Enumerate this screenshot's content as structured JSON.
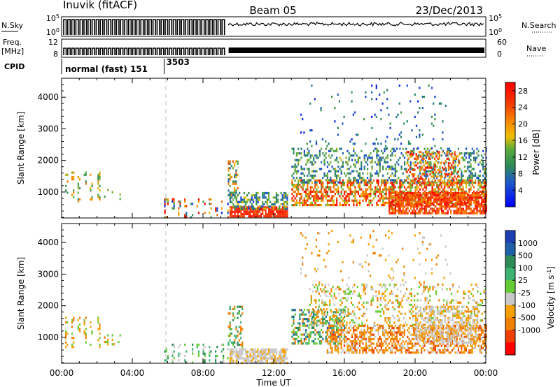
{
  "header": {
    "title": "Inuvik (fitACF)",
    "beam": "Beam 05",
    "date": "23/Dec/2013"
  },
  "top_panels": {
    "left_labels": {
      "nsky": "N.Sky",
      "freq": "Freq.",
      "freq_unit": "[MHz]",
      "cpid": "CPID"
    },
    "right_labels": {
      "nsearch": "N.Search",
      "nave": "Nave"
    },
    "nsky_ticks": [
      "10^5",
      "10^0"
    ],
    "nsearch_ticks": [
      "10^5",
      "10^0"
    ],
    "freq_ticks": [
      "12",
      "8"
    ],
    "nave_ticks": [
      "60",
      "0"
    ],
    "cpid_segments": [
      {
        "label": "normal (fast) 151",
        "start_hour": 0.0
      },
      {
        "label": "3503",
        "start_hour": 5.8
      }
    ]
  },
  "chart_data": [
    {
      "type": "heatmap",
      "title": "",
      "xlabel": "",
      "ylabel": "Slant Range [km]",
      "xlim": [
        0,
        24
      ],
      "ylim": [
        180,
        4600
      ],
      "x_ticks": [
        "00:00",
        "04:00",
        "08:00",
        "12:00",
        "16:00",
        "20:00",
        "00:00"
      ],
      "y_ticks": [
        1000,
        2000,
        3000,
        4000
      ],
      "colorbar": {
        "label": "Power [dB]",
        "ticks": [
          4,
          8,
          12,
          16,
          20,
          24,
          28
        ],
        "range": [
          0,
          30
        ]
      },
      "colors": {
        "low": "#0000ff",
        "mid": "#2e8b57",
        "high": "#ff0000"
      },
      "scatter_regions": [
        {
          "x0": 0.2,
          "x1": 2.2,
          "r0": 700,
          "r1": 1650,
          "v0": 10,
          "v1": 22,
          "density": 0.35,
          "pattern": "striped"
        },
        {
          "x0": 2.4,
          "x1": 3.4,
          "r0": 800,
          "r1": 1100,
          "v0": 8,
          "v1": 20,
          "density": 0.3,
          "pattern": "striped"
        },
        {
          "x0": 5.8,
          "x1": 9.4,
          "r0": 200,
          "r1": 800,
          "v0": 2,
          "v1": 30,
          "density": 0.35,
          "pattern": "striped"
        },
        {
          "x0": 9.5,
          "x1": 12.8,
          "r0": 200,
          "r1": 550,
          "v0": 24,
          "v1": 30,
          "density": 0.85
        },
        {
          "x0": 9.5,
          "x1": 12.8,
          "r0": 500,
          "r1": 1000,
          "v0": 4,
          "v1": 18,
          "density": 0.5
        },
        {
          "x0": 9.4,
          "x1": 10.0,
          "r0": 800,
          "r1": 2000,
          "v0": 6,
          "v1": 24,
          "density": 0.4
        },
        {
          "x0": 13.0,
          "x1": 24.0,
          "r0": 600,
          "r1": 1400,
          "v0": 12,
          "v1": 30,
          "density": 0.6
        },
        {
          "x0": 13.0,
          "x1": 24.0,
          "r0": 1300,
          "r1": 2400,
          "v0": 4,
          "v1": 16,
          "density": 0.3
        },
        {
          "x0": 13.5,
          "x1": 22.0,
          "r0": 2400,
          "r1": 4400,
          "v0": 2,
          "v1": 12,
          "density": 0.04
        },
        {
          "x0": 18.5,
          "x1": 24.0,
          "r0": 300,
          "r1": 1000,
          "v0": 20,
          "v1": 30,
          "density": 0.8
        },
        {
          "x0": 19.5,
          "x1": 22.5,
          "r0": 1300,
          "r1": 2300,
          "v0": 16,
          "v1": 30,
          "density": 0.35
        }
      ]
    },
    {
      "type": "heatmap",
      "title": "",
      "xlabel": "Time UT",
      "ylabel": "Slant Range [km]",
      "xlim": [
        0,
        24
      ],
      "ylim": [
        180,
        4600
      ],
      "x_ticks": [
        "00:00",
        "04:00",
        "08:00",
        "12:00",
        "16:00",
        "20:00",
        "00:00"
      ],
      "y_ticks": [
        1000,
        2000,
        3000,
        4000
      ],
      "colorbar": {
        "label": "Velocity [m s^-1]",
        "ticks": [
          "1000",
          "500",
          "100",
          "25",
          "-25",
          "-100",
          "-500",
          "-1000"
        ],
        "bands": [
          "#1e3fb4",
          "#2060a8",
          "#2e8b57",
          "#3cb371",
          "#66cc33",
          "#c8c8c8",
          "#f5a000",
          "#f08000",
          "#f04000",
          "#ff0000"
        ]
      },
      "scatter_regions": [
        {
          "x0": 0.2,
          "x1": 2.2,
          "r0": 700,
          "r1": 1650,
          "c": [
            4,
            6,
            7
          ],
          "density": 0.35,
          "pattern": "striped"
        },
        {
          "x0": 2.4,
          "x1": 3.4,
          "r0": 800,
          "r1": 1100,
          "c": [
            4,
            6,
            7
          ],
          "density": 0.3,
          "pattern": "striped"
        },
        {
          "x0": 5.8,
          "x1": 9.4,
          "r0": 200,
          "r1": 800,
          "c": [
            2,
            3,
            4,
            5
          ],
          "density": 0.35,
          "pattern": "striped"
        },
        {
          "x0": 9.5,
          "x1": 12.8,
          "r0": 220,
          "r1": 650,
          "c": [
            5,
            5,
            5,
            6
          ],
          "density": 0.8
        },
        {
          "x0": 9.4,
          "x1": 10.2,
          "r0": 700,
          "r1": 2000,
          "c": [
            2,
            3,
            4,
            7
          ],
          "density": 0.4
        },
        {
          "x0": 13.0,
          "x1": 16.0,
          "r0": 800,
          "r1": 1900,
          "c": [
            1,
            2,
            3,
            4,
            7
          ],
          "density": 0.45
        },
        {
          "x0": 15.0,
          "x1": 24.0,
          "r0": 500,
          "r1": 1400,
          "c": [
            6,
            7,
            7,
            8,
            5
          ],
          "density": 0.55
        },
        {
          "x0": 14.0,
          "x1": 24.0,
          "r0": 1400,
          "r1": 2700,
          "c": [
            5,
            6,
            7,
            4
          ],
          "density": 0.22
        },
        {
          "x0": 20.0,
          "x1": 23.5,
          "r0": 800,
          "r1": 2000,
          "c": [
            5,
            5,
            6
          ],
          "density": 0.5
        },
        {
          "x0": 13.5,
          "x1": 22.0,
          "r0": 2600,
          "r1": 4400,
          "c": [
            5,
            6,
            7
          ],
          "density": 0.04
        }
      ]
    }
  ]
}
